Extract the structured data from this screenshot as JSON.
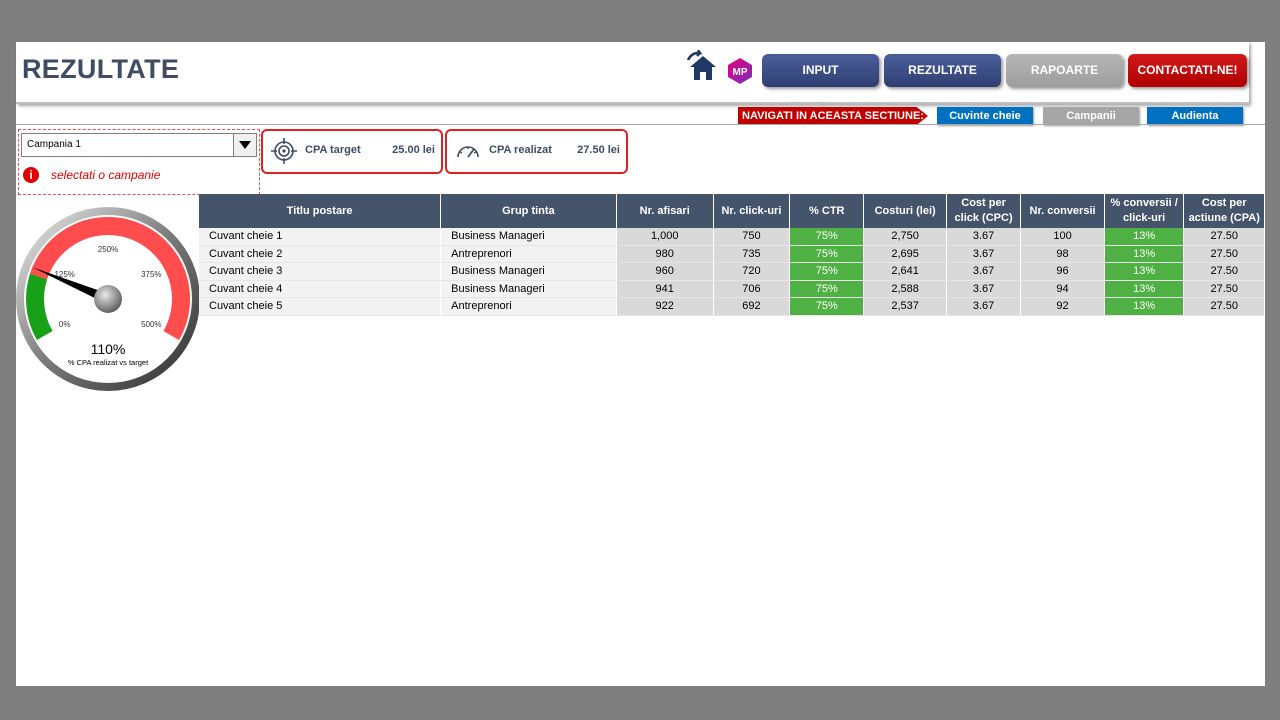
{
  "header": {
    "title": "REZULTATE",
    "nav": {
      "input": "INPUT",
      "rezultate": "REZULTATE",
      "rapoarte": "RAPOARTE",
      "contact": "CONTACTATI-NE!"
    },
    "logo_text": "MP",
    "icons": [
      "home-icon",
      "mp-logo"
    ]
  },
  "subnav": {
    "label": "NAVIGATI IN ACEASTA SECTIUNE:",
    "cuvinte": "Cuvinte cheie",
    "campanii": "Campanii",
    "audienta": "Audienta"
  },
  "selector": {
    "value": "Campania 1",
    "hint": "selectati o campanie",
    "info_glyph": "i"
  },
  "kpis": {
    "cpa_target_label": "CPA target",
    "cpa_target_value": "25.00 lei",
    "cpa_realizat_label": "CPA realizat",
    "cpa_realizat_value": "27.50 lei"
  },
  "gauge": {
    "value": 110,
    "value_text": "110%",
    "label": "% CPA realizat vs target",
    "ticks": [
      "0%",
      "125%",
      "250%",
      "375%",
      "500%"
    ],
    "min": 0,
    "max": 500
  },
  "table": {
    "headers": [
      "Titlu postare",
      "Grup tinta",
      "Nr. afisari",
      "Nr. click-uri",
      "% CTR",
      "Costuri (lei)",
      "Cost per click (CPC)",
      "Nr. conversii",
      "% conversii / click-uri",
      "Cost per actiune (CPA)"
    ],
    "rows": [
      [
        "Cuvant cheie 1",
        "Business Manageri",
        "1,000",
        "750",
        "75%",
        "2,750",
        "3.67",
        "100",
        "13%",
        "27.50"
      ],
      [
        "Cuvant cheie 2",
        "Antreprenori",
        "980",
        "735",
        "75%",
        "2,695",
        "3.67",
        "98",
        "13%",
        "27.50"
      ],
      [
        "Cuvant cheie 3",
        "Business Manageri",
        "960",
        "720",
        "75%",
        "2,641",
        "3.67",
        "96",
        "13%",
        "27.50"
      ],
      [
        "Cuvant cheie 4",
        "Business Manageri",
        "941",
        "706",
        "75%",
        "2,588",
        "3.67",
        "94",
        "13%",
        "27.50"
      ],
      [
        "Cuvant cheie 5",
        "Antreprenori",
        "922",
        "692",
        "75%",
        "2,537",
        "3.67",
        "92",
        "13%",
        "27.50"
      ]
    ]
  },
  "colors": {
    "header_dark": "#44546a",
    "accent_red": "#c00000",
    "accent_blue": "#0070c0",
    "good_green": "#4fb043"
  }
}
